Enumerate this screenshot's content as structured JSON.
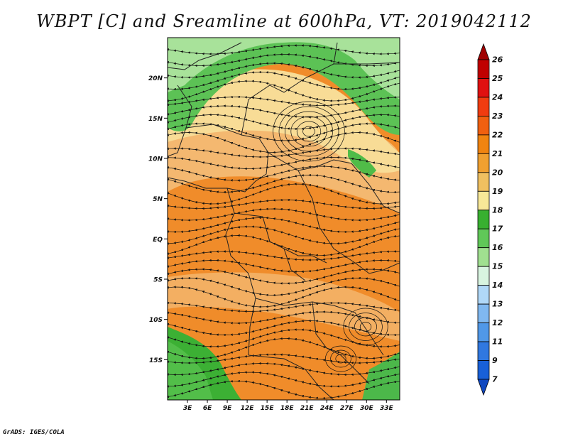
{
  "title": "WBPT [C] and Sreamline at 600hPa, VT: 2019042112",
  "footer": "GrADS: IGES/COLA",
  "map": {
    "lat_labels": [
      "20N",
      "15N",
      "10N",
      "5N",
      "EQ",
      "5S",
      "10S",
      "15S"
    ],
    "lat_values": [
      20,
      15,
      10,
      5,
      0,
      -5,
      -10,
      -15
    ],
    "lon_labels": [
      "3E",
      "6E",
      "9E",
      "12E",
      "15E",
      "18E",
      "21E",
      "24E",
      "27E",
      "30E",
      "33E"
    ],
    "lon_values": [
      3,
      6,
      9,
      12,
      15,
      18,
      21,
      24,
      27,
      30,
      33
    ],
    "lat_range": [
      -20,
      25
    ],
    "lon_range": [
      0,
      35
    ]
  },
  "colorbar": {
    "levels": [
      "26",
      "25",
      "24",
      "23",
      "22",
      "21",
      "20",
      "19",
      "18",
      "17",
      "16",
      "15",
      "14",
      "13",
      "12",
      "11",
      "9",
      "7"
    ],
    "colors": [
      "#a00000",
      "#c00000",
      "#e01010",
      "#f03c10",
      "#f06010",
      "#f08410",
      "#f0a030",
      "#f0c060",
      "#f8e898",
      "#38b030",
      "#60c858",
      "#a0e090",
      "#d8f4e0",
      "#b0d8f8",
      "#80b8f0",
      "#5098e8",
      "#3078e0",
      "#1860d8",
      "#1048c0"
    ]
  }
}
